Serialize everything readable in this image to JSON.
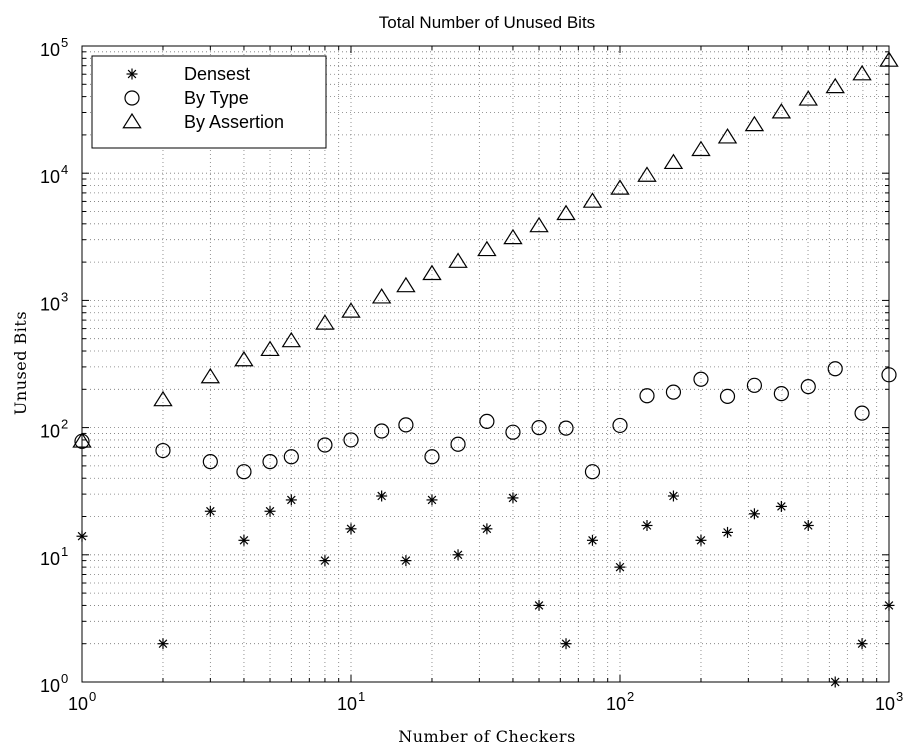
{
  "chart_data": {
    "type": "scatter",
    "title": "Total Number of Unused Bits",
    "xlabel": "Number of Checkers",
    "ylabel": "Unused Bits",
    "xscale": "log",
    "yscale": "log",
    "xlim": [
      1,
      1000
    ],
    "ylim": [
      1,
      100000
    ],
    "grid": true,
    "legend_position": "top-left",
    "x_ticks": [
      {
        "base": "10",
        "exp": "0"
      },
      {
        "base": "10",
        "exp": "1"
      },
      {
        "base": "10",
        "exp": "2"
      },
      {
        "base": "10",
        "exp": "3"
      }
    ],
    "y_ticks": [
      {
        "base": "10",
        "exp": "0"
      },
      {
        "base": "10",
        "exp": "1"
      },
      {
        "base": "10",
        "exp": "2"
      },
      {
        "base": "10",
        "exp": "3"
      },
      {
        "base": "10",
        "exp": "4"
      },
      {
        "base": "10",
        "exp": "5"
      }
    ],
    "series": [
      {
        "name": "Densest",
        "marker": "asterisk",
        "points": [
          [
            1,
            14
          ],
          [
            2,
            2
          ],
          [
            3,
            22
          ],
          [
            4,
            13
          ],
          [
            5,
            22
          ],
          [
            6,
            27
          ],
          [
            8,
            9
          ],
          [
            10,
            16
          ],
          [
            13,
            29
          ],
          [
            16,
            9
          ],
          [
            20,
            27
          ],
          [
            25,
            10
          ],
          [
            32,
            16
          ],
          [
            40,
            28
          ],
          [
            50,
            4
          ],
          [
            63,
            2
          ],
          [
            79,
            13
          ],
          [
            100,
            8
          ],
          [
            126,
            17
          ],
          [
            158,
            29
          ],
          [
            200,
            13
          ],
          [
            251,
            15
          ],
          [
            316,
            21
          ],
          [
            398,
            24
          ],
          [
            501,
            17
          ],
          [
            631,
            1
          ],
          [
            794,
            2
          ],
          [
            1000,
            4
          ]
        ]
      },
      {
        "name": "By Type",
        "marker": "circle",
        "points": [
          [
            1,
            78
          ],
          [
            2,
            66
          ],
          [
            3,
            54
          ],
          [
            4,
            45
          ],
          [
            5,
            54
          ],
          [
            6,
            59
          ],
          [
            8,
            73
          ],
          [
            10,
            80
          ],
          [
            13,
            94
          ],
          [
            16,
            105
          ],
          [
            20,
            59
          ],
          [
            25,
            74
          ],
          [
            32,
            112
          ],
          [
            40,
            92
          ],
          [
            50,
            100
          ],
          [
            63,
            99
          ],
          [
            79,
            45
          ],
          [
            100,
            104
          ],
          [
            126,
            178
          ],
          [
            158,
            190
          ],
          [
            200,
            240
          ],
          [
            251,
            176
          ],
          [
            316,
            215
          ],
          [
            398,
            185
          ],
          [
            501,
            210
          ],
          [
            631,
            290
          ],
          [
            794,
            130
          ],
          [
            1000,
            260
          ]
        ]
      },
      {
        "name": "By Assertion",
        "marker": "triangle",
        "points": [
          [
            1,
            78
          ],
          [
            2,
            165
          ],
          [
            3,
            250
          ],
          [
            4,
            340
          ],
          [
            5,
            410
          ],
          [
            6,
            480
          ],
          [
            8,
            660
          ],
          [
            10,
            820
          ],
          [
            13,
            1060
          ],
          [
            16,
            1300
          ],
          [
            20,
            1620
          ],
          [
            25,
            2020
          ],
          [
            32,
            2500
          ],
          [
            40,
            3100
          ],
          [
            50,
            3850
          ],
          [
            63,
            4800
          ],
          [
            79,
            6000
          ],
          [
            100,
            7600
          ],
          [
            126,
            9600
          ],
          [
            158,
            12100
          ],
          [
            200,
            15300
          ],
          [
            251,
            19200
          ],
          [
            316,
            24000
          ],
          [
            398,
            30200
          ],
          [
            501,
            38100
          ],
          [
            631,
            47700
          ],
          [
            794,
            60200
          ],
          [
            1000,
            77000
          ]
        ]
      }
    ]
  }
}
